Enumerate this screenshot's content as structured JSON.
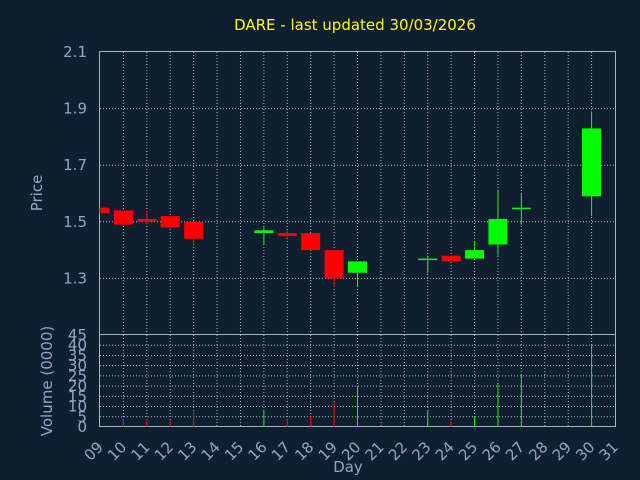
{
  "chart_data": {
    "type": "candlestick",
    "title": "DARE - last updated 30/03/2026",
    "xlabel": "Day",
    "price_ylabel": "Price",
    "volume_ylabel": "Volume (0000)",
    "x_ticks": [
      "09",
      "10",
      "11",
      "12",
      "13",
      "14",
      "15",
      "16",
      "17",
      "18",
      "19",
      "20",
      "21",
      "22",
      "23",
      "24",
      "25",
      "26",
      "27",
      "28",
      "29",
      "30",
      "31"
    ],
    "price_ticks": [
      "2.1",
      "1.9",
      "1.7",
      "1.5",
      "1.3"
    ],
    "price_ylim": [
      1.1,
      2.1
    ],
    "volume_ticks": [
      "45",
      "40",
      "35",
      "30",
      "25",
      "20",
      "15",
      "10",
      "5",
      "0"
    ],
    "volume_ylim": [
      0,
      45
    ],
    "up_color": "#00ff00",
    "down_color": "#ff0000",
    "grid": true,
    "candles": [
      {
        "day": 9,
        "open": 1.55,
        "high": 1.55,
        "low": 1.53,
        "close": 1.53,
        "volume": 0
      },
      {
        "day": 10,
        "open": 1.54,
        "high": 1.54,
        "low": 1.49,
        "close": 1.49,
        "volume": 4
      },
      {
        "day": 11,
        "open": 1.51,
        "high": 1.54,
        "low": 1.49,
        "close": 1.5,
        "volume": 4
      },
      {
        "day": 12,
        "open": 1.52,
        "high": 1.52,
        "low": 1.48,
        "close": 1.48,
        "volume": 3
      },
      {
        "day": 13,
        "open": 1.5,
        "high": 1.5,
        "low": 1.42,
        "close": 1.44,
        "volume": 8
      },
      {
        "day": 16,
        "open": 1.46,
        "high": 1.48,
        "low": 1.42,
        "close": 1.47,
        "volume": 8
      },
      {
        "day": 17,
        "open": 1.46,
        "high": 1.47,
        "low": 1.44,
        "close": 1.45,
        "volume": 4
      },
      {
        "day": 18,
        "open": 1.46,
        "high": 1.46,
        "low": 1.4,
        "close": 1.4,
        "volume": 5
      },
      {
        "day": 19,
        "open": 1.4,
        "high": 1.4,
        "low": 1.27,
        "close": 1.3,
        "volume": 12
      },
      {
        "day": 20,
        "open": 1.32,
        "high": 1.36,
        "low": 1.27,
        "close": 1.36,
        "volume": 20
      },
      {
        "day": 23,
        "open": 1.37,
        "high": 1.38,
        "low": 1.32,
        "close": 1.37,
        "volume": 8
      },
      {
        "day": 24,
        "open": 1.38,
        "high": 1.38,
        "low": 1.36,
        "close": 1.36,
        "volume": 3
      },
      {
        "day": 25,
        "open": 1.37,
        "high": 1.43,
        "low": 1.37,
        "close": 1.4,
        "volume": 5
      },
      {
        "day": 26,
        "open": 1.42,
        "high": 1.61,
        "low": 1.38,
        "close": 1.51,
        "volume": 21
      },
      {
        "day": 27,
        "open": 1.55,
        "high": 1.6,
        "low": 1.49,
        "close": 1.55,
        "volume": 26
      },
      {
        "day": 30,
        "open": 1.59,
        "high": 1.89,
        "low": 1.52,
        "close": 1.83,
        "volume": 40
      }
    ]
  }
}
